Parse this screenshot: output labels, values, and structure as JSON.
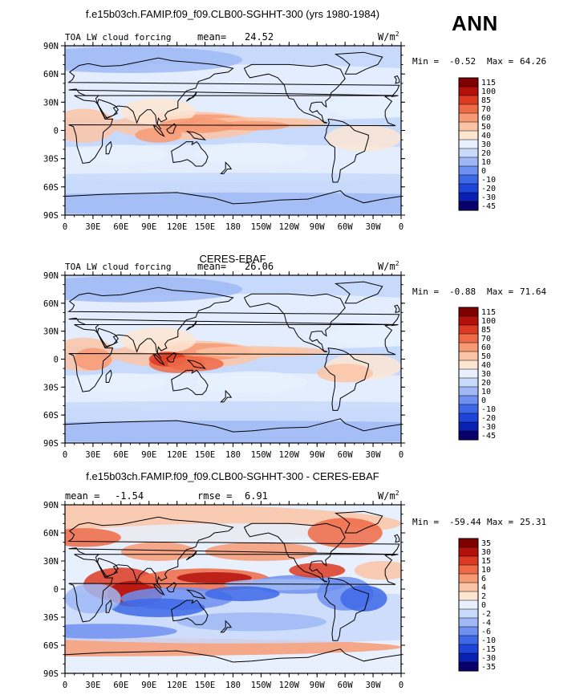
{
  "season": "ANN",
  "units_base": "W/m",
  "units_exp": "2",
  "lat_ticks": [
    "90N",
    "60N",
    "30N",
    "0",
    "30S",
    "60S",
    "90S"
  ],
  "lon_ticks": [
    "0",
    "30E",
    "60E",
    "90E",
    "120E",
    "150E",
    "180",
    "150W",
    "120W",
    "90W",
    "60W",
    "30W",
    "0"
  ],
  "colors": {
    "levels_main": [
      "#08006b",
      "#0a1fb3",
      "#1f44d9",
      "#3d68e8",
      "#6e90f0",
      "#9fb8f5",
      "#c8d9fa",
      "#e8f0fd",
      "#fde5d2",
      "#fbc4a6",
      "#f79a75",
      "#ef6a47",
      "#dc3a22",
      "#b4110b",
      "#800000"
    ],
    "land_outline": "#000000"
  },
  "chart_data": [
    {
      "type": "heatmap",
      "title": "f.e15b03ch.FAMIP.f09_f09.CLB00-SGHHT-300 (yrs 1980-1984)",
      "left_label": "TOA LW cloud forcing",
      "stat1_label": "mean=",
      "stat1_value": "24.52",
      "min_label": "Min =",
      "min_value": "-0.52",
      "max_label": "Max =",
      "max_value": "64.26",
      "xlabel": "",
      "ylabel": "",
      "xlim": [
        0,
        360
      ],
      "ylim": [
        -90,
        90
      ],
      "colorbar_levels": [
        "115",
        "100",
        "85",
        "70",
        "60",
        "50",
        "40",
        "30",
        "20",
        "10",
        "0",
        "-10",
        "-20",
        "-30",
        "-45"
      ]
    },
    {
      "type": "heatmap",
      "title": "CERES-EBAF",
      "left_label": "TOA LW cloud forcing",
      "stat1_label": "mean=",
      "stat1_value": "26.06",
      "min_label": "Min =",
      "min_value": "-0.88",
      "max_label": "Max =",
      "max_value": "71.64",
      "xlabel": "",
      "ylabel": "",
      "xlim": [
        0,
        360
      ],
      "ylim": [
        -90,
        90
      ],
      "colorbar_levels": [
        "115",
        "100",
        "85",
        "70",
        "60",
        "50",
        "40",
        "30",
        "20",
        "10",
        "0",
        "-10",
        "-20",
        "-30",
        "-45"
      ]
    },
    {
      "type": "heatmap",
      "title": "f.e15b03ch.FAMIP.f09_f09.CLB00-SGHHT-300 - CERES-EBAF",
      "left_label": "mean =",
      "left_value": "-1.54",
      "stat1_label": "rmse =",
      "stat1_value": "6.91",
      "min_label": "Min =",
      "min_value": "-59.44",
      "max_label": "Max =",
      "max_value": "25.31",
      "xlabel": "",
      "ylabel": "",
      "xlim": [
        0,
        360
      ],
      "ylim": [
        -90,
        90
      ],
      "colorbar_levels": [
        "35",
        "30",
        "15",
        "10",
        "6",
        "4",
        "2",
        "0",
        "-2",
        "-4",
        "-6",
        "-10",
        "-15",
        "-30",
        "-35"
      ]
    }
  ]
}
